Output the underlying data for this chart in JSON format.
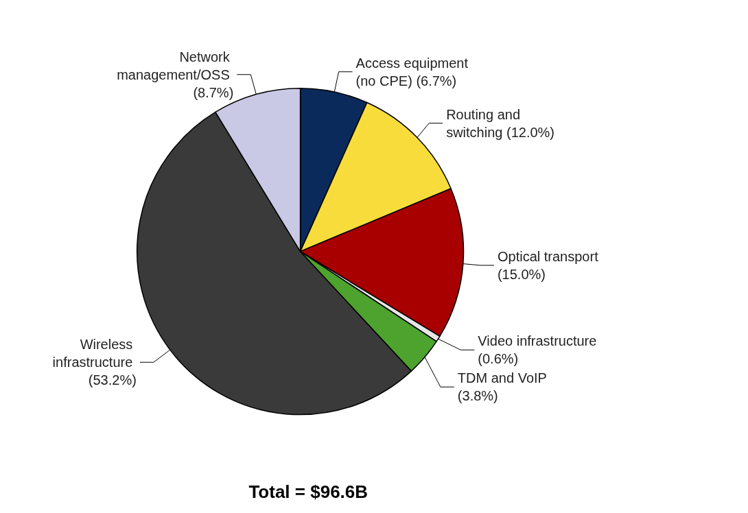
{
  "chart_data": {
    "type": "pie",
    "categories": [
      "Access equipment (no CPE)",
      "Routing and switching",
      "Optical transport",
      "Video infrastructure",
      "TDM and VoIP",
      "Wireless infrastructure",
      "Network management/OSS"
    ],
    "values": [
      6.7,
      12.0,
      15.0,
      0.6,
      3.8,
      53.2,
      8.7
    ],
    "value_labels": [
      "(6.7%)",
      "(12.0%)",
      "(15.0%)",
      "(0.6%)",
      "(3.8%)",
      "(53.2%)",
      "(8.7%)"
    ],
    "colors": [
      "#0b2a5c",
      "#f7dc3c",
      "#a80000",
      "#e6e6e6",
      "#4ea22e",
      "#3a3a3a",
      "#c9c9e6"
    ],
    "legend": false,
    "annotations": [
      "Total = $96.6B"
    ]
  }
}
